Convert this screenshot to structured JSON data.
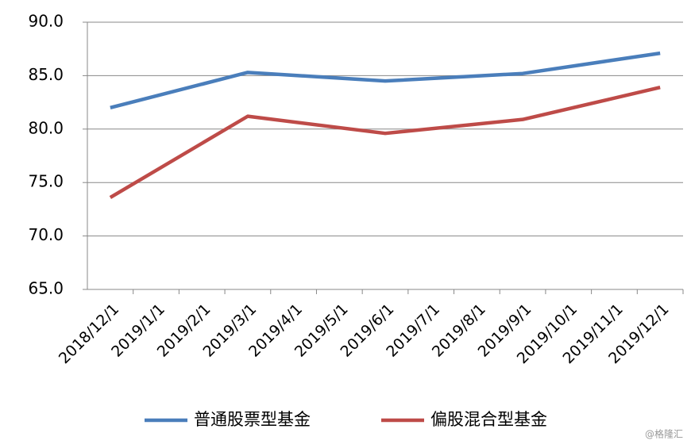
{
  "chart_data": {
    "type": "line",
    "categories": [
      "2018/12/1",
      "2019/1/1",
      "2019/2/1",
      "2019/3/1",
      "2019/4/1",
      "2019/5/1",
      "2019/6/1",
      "2019/7/1",
      "2019/8/1",
      "2019/9/1",
      "2019/10/1",
      "2019/11/1",
      "2019/12/1"
    ],
    "series": [
      {
        "name": "普通股票型基金",
        "color": "#4a7ebb",
        "x": [
          "2018/12/1",
          "2019/3/1",
          "2019/6/1",
          "2019/9/1",
          "2019/12/1"
        ],
        "values": [
          82.0,
          85.3,
          84.5,
          85.2,
          87.1
        ]
      },
      {
        "name": "偏股混合型基金",
        "color": "#be4b48",
        "x": [
          "2018/12/1",
          "2019/3/1",
          "2019/6/1",
          "2019/9/1",
          "2019/12/1"
        ],
        "values": [
          73.6,
          81.2,
          79.6,
          80.9,
          83.9
        ]
      }
    ],
    "ylim": [
      65,
      90
    ],
    "yticks": [
      {
        "value": 65,
        "label": "65.0"
      },
      {
        "value": 70,
        "label": "70.0"
      },
      {
        "value": 75,
        "label": "75.0"
      },
      {
        "value": 80,
        "label": "80.0"
      },
      {
        "value": 85,
        "label": "85.0"
      },
      {
        "value": 90,
        "label": "90.0"
      }
    ],
    "grid": true,
    "legend": "bottom",
    "watermark": "@格隆汇"
  }
}
